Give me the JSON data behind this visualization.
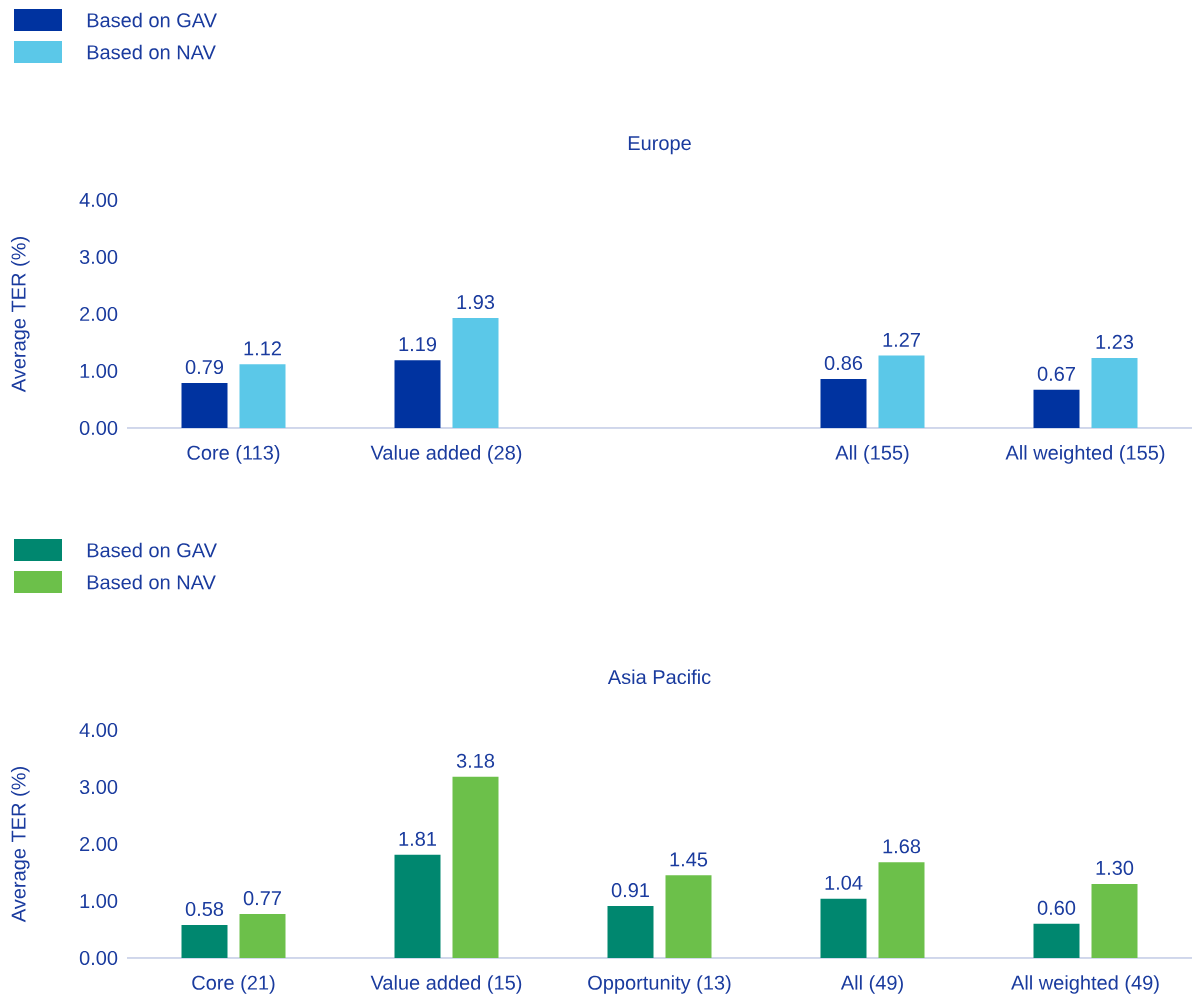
{
  "chart_data": [
    {
      "type": "bar",
      "title": "Europe",
      "ylabel": "Average TER (%)",
      "categories": [
        "Core (113)",
        "Value added (28)",
        null,
        "All (155)",
        "All weighted (155)"
      ],
      "series": [
        {
          "name": "Based on GAV",
          "color": "#0033a0",
          "values": [
            0.79,
            1.19,
            null,
            0.86,
            0.67
          ],
          "value_labels": [
            "0.79",
            "1.19",
            null,
            "0.86",
            "0.67"
          ]
        },
        {
          "name": "Based on NAV",
          "color": "#5bc8e8",
          "values": [
            1.12,
            1.93,
            null,
            1.27,
            1.23
          ],
          "value_labels": [
            "1.12",
            "1.93",
            null,
            "1.27",
            "1.23"
          ]
        }
      ],
      "ylim": [
        0,
        4
      ],
      "yticks": [
        {
          "value": 0,
          "label": "0.00"
        },
        {
          "value": 1,
          "label": "1.00"
        },
        {
          "value": 2,
          "label": "2.00"
        },
        {
          "value": 3,
          "label": "3.00"
        },
        {
          "value": 4,
          "label": "4.00"
        }
      ],
      "legend": "top left"
    },
    {
      "type": "bar",
      "title": "Asia Pacific",
      "ylabel": "Average TER (%)",
      "categories": [
        "Core (21)",
        "Value added (15)",
        "Opportunity (13)",
        "All (49)",
        "All weighted (49)"
      ],
      "series": [
        {
          "name": "Based on GAV",
          "color": "#00876f",
          "values": [
            0.58,
            1.81,
            0.91,
            1.04,
            0.6
          ],
          "value_labels": [
            "0.58",
            "1.81",
            "0.91",
            "1.04",
            "0.60"
          ]
        },
        {
          "name": "Based on NAV",
          "color": "#6cc04a",
          "values": [
            0.77,
            3.18,
            1.45,
            1.68,
            1.3
          ],
          "value_labels": [
            "0.77",
            "3.18",
            "1.45",
            "1.68",
            "1.30"
          ]
        }
      ],
      "ylim": [
        0,
        4
      ],
      "yticks": [
        {
          "value": 0,
          "label": "0.00"
        },
        {
          "value": 1,
          "label": "1.00"
        },
        {
          "value": 2,
          "label": "2.00"
        },
        {
          "value": 3,
          "label": "3.00"
        },
        {
          "value": 4,
          "label": "4.00"
        }
      ],
      "legend": "top left"
    }
  ]
}
